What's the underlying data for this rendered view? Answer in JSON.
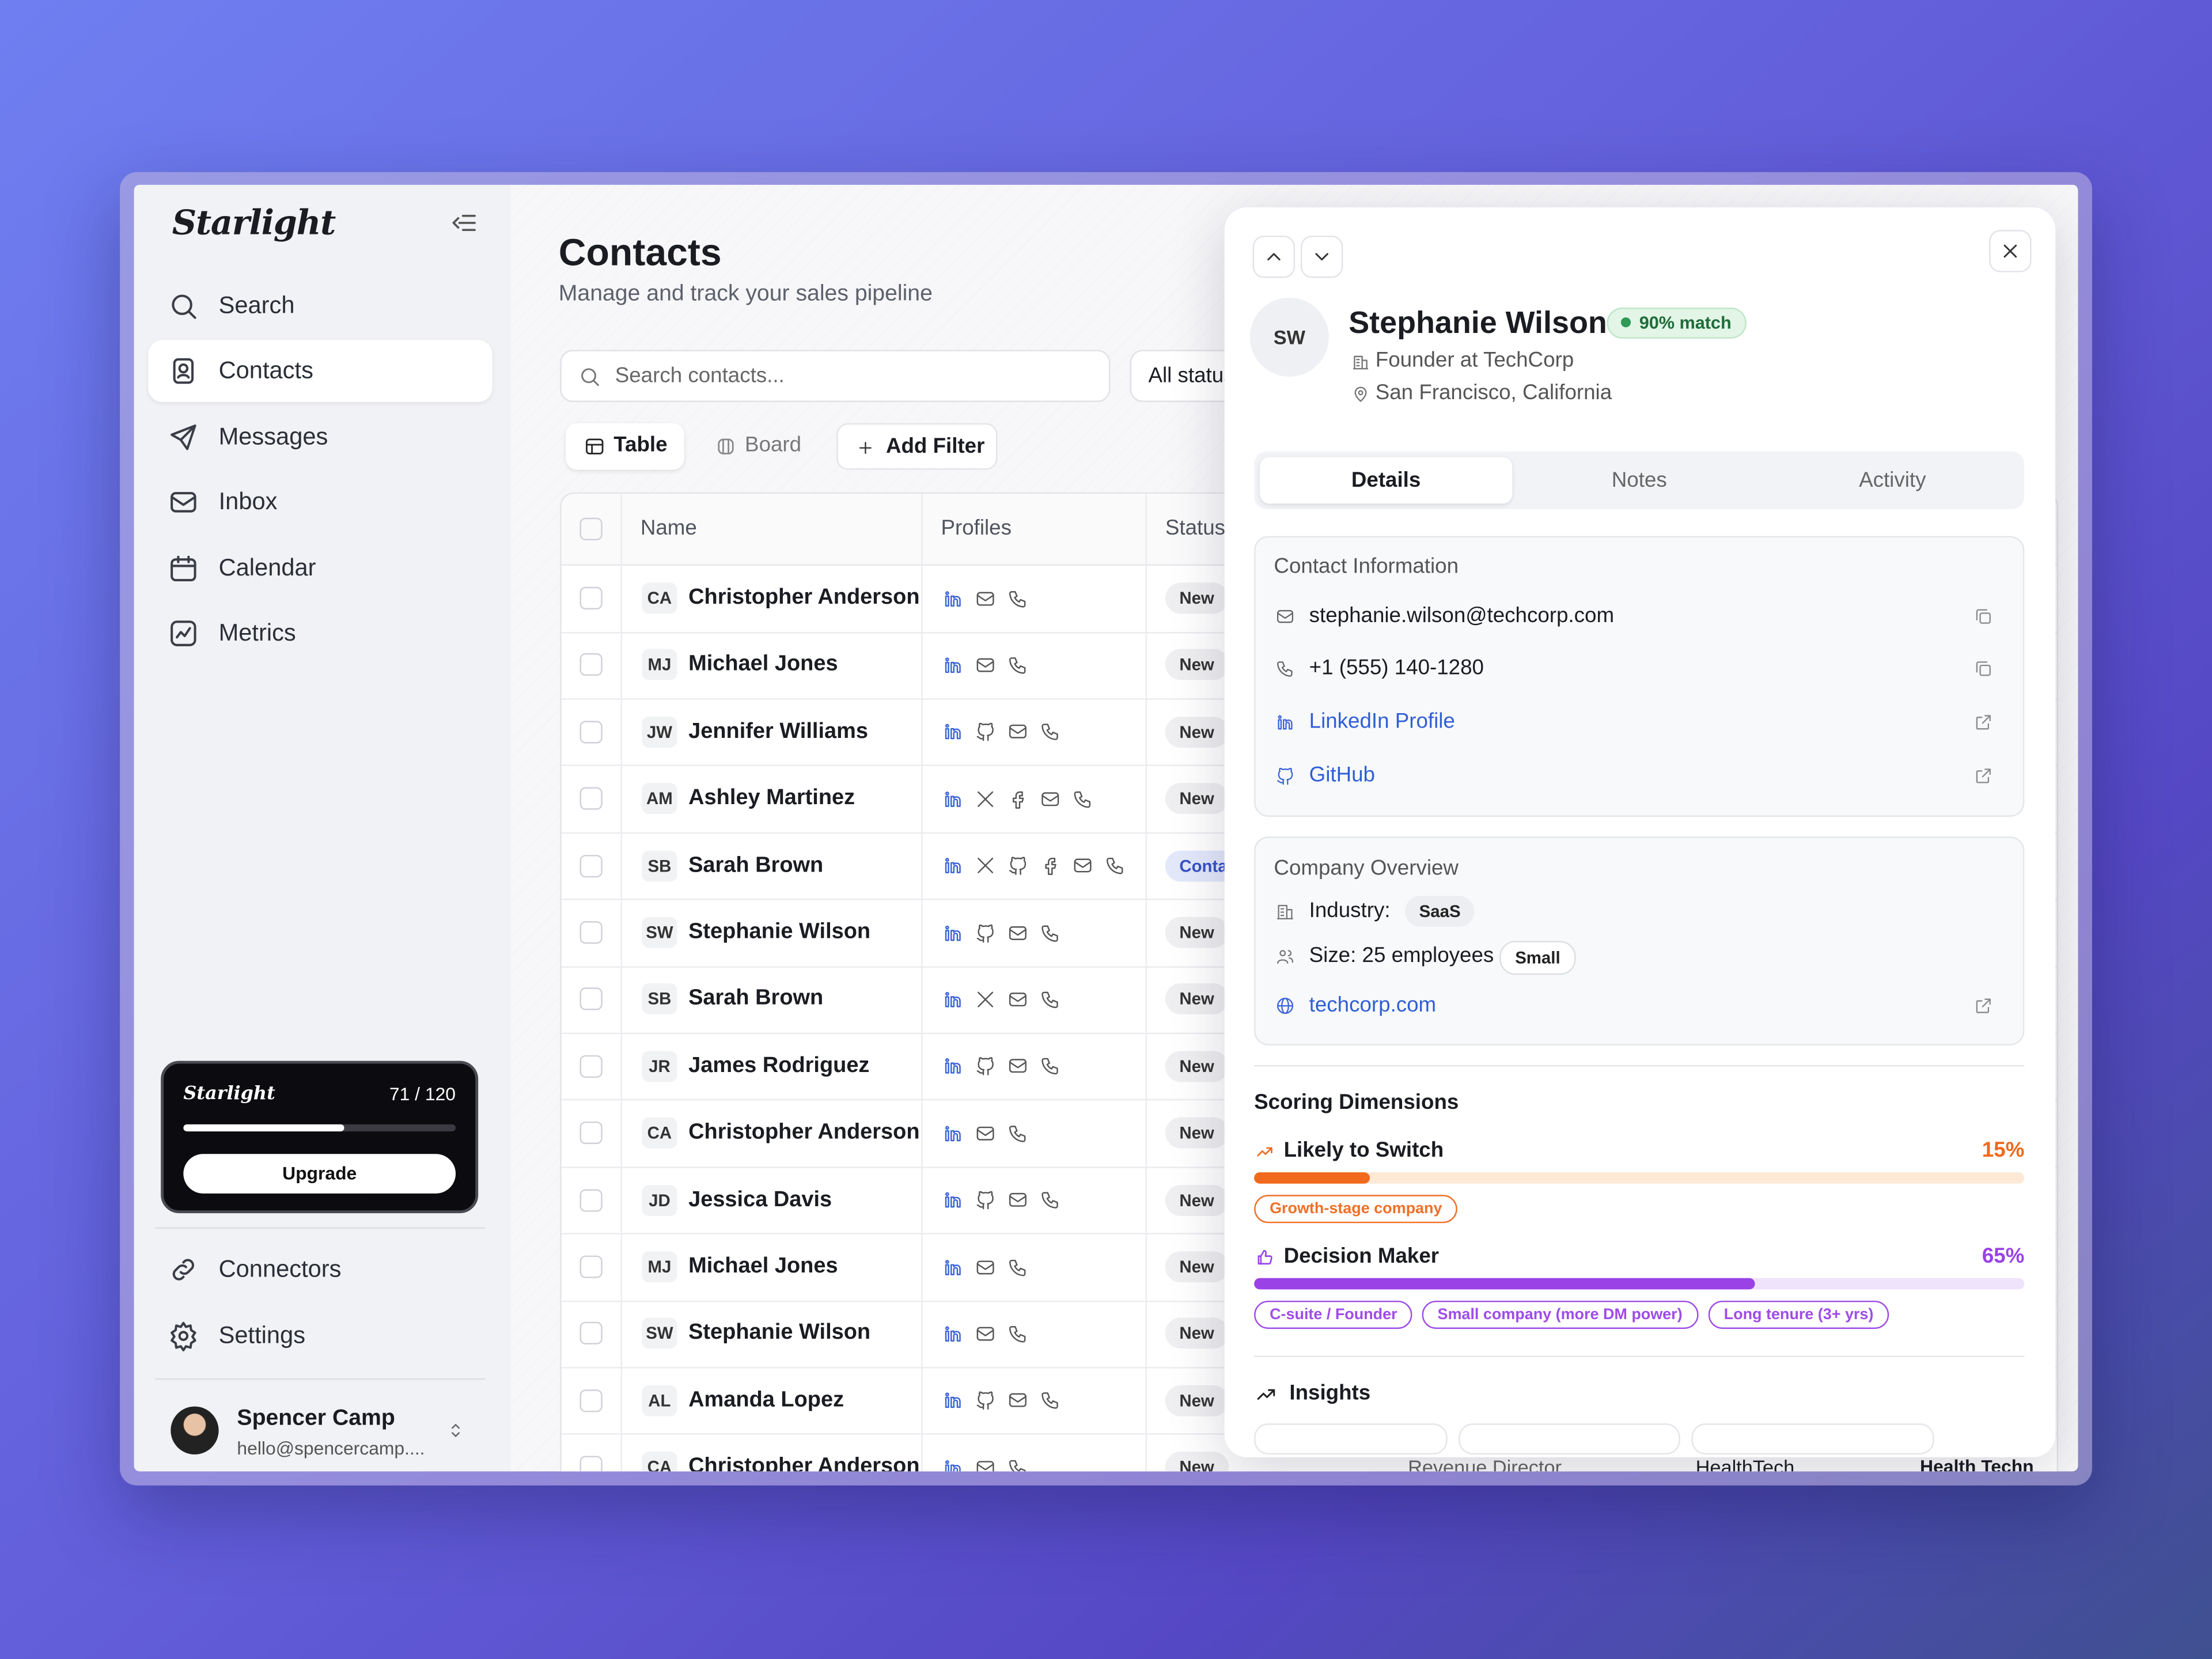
{
  "sidebar": {
    "logo": "Starlight",
    "nav": [
      "Search",
      "Contacts",
      "Messages",
      "Inbox",
      "Calendar",
      "Metrics"
    ],
    "active_index": 1,
    "usage": {
      "brand": "Starlight",
      "used": 71,
      "total": 120,
      "label": "71 / 120",
      "button": "Upgrade"
    },
    "bottom_nav": [
      "Connectors",
      "Settings"
    ],
    "user": {
      "name": "Spencer Camp",
      "email": "hello@spencercamp...."
    }
  },
  "header": {
    "title": "Contacts",
    "subtitle": "Manage and track your sales pipeline"
  },
  "toolbar": {
    "search_placeholder": "Search contacts...",
    "status_filter": "All statuses",
    "views": [
      "Table",
      "Board"
    ],
    "active_view": 0,
    "add_filter": "Add Filter"
  },
  "table": {
    "columns": [
      "Name",
      "Profiles",
      "Status"
    ],
    "rows": [
      {
        "initials": "CA",
        "name": "Christopher Anderson",
        "profiles": [
          "linkedin",
          "email",
          "phone"
        ],
        "status": "New"
      },
      {
        "initials": "MJ",
        "name": "Michael Jones",
        "profiles": [
          "linkedin",
          "email",
          "phone"
        ],
        "status": "New"
      },
      {
        "initials": "JW",
        "name": "Jennifer Williams",
        "profiles": [
          "linkedin",
          "github",
          "email",
          "phone"
        ],
        "status": "New"
      },
      {
        "initials": "AM",
        "name": "Ashley Martinez",
        "profiles": [
          "linkedin",
          "x",
          "facebook",
          "email",
          "phone"
        ],
        "status": "New"
      },
      {
        "initials": "SB",
        "name": "Sarah Brown",
        "profiles": [
          "linkedin",
          "x",
          "github",
          "facebook",
          "email",
          "phone"
        ],
        "status": "Contacted"
      },
      {
        "initials": "SW",
        "name": "Stephanie Wilson",
        "profiles": [
          "linkedin",
          "github",
          "email",
          "phone"
        ],
        "status": "New"
      },
      {
        "initials": "SB",
        "name": "Sarah Brown",
        "profiles": [
          "linkedin",
          "x",
          "email",
          "phone"
        ],
        "status": "New"
      },
      {
        "initials": "JR",
        "name": "James Rodriguez",
        "profiles": [
          "linkedin",
          "github",
          "email",
          "phone"
        ],
        "status": "New"
      },
      {
        "initials": "CA",
        "name": "Christopher Anderson",
        "profiles": [
          "linkedin",
          "email",
          "phone"
        ],
        "status": "New"
      },
      {
        "initials": "JD",
        "name": "Jessica Davis",
        "profiles": [
          "linkedin",
          "github",
          "email",
          "phone"
        ],
        "status": "New"
      },
      {
        "initials": "MJ",
        "name": "Michael Jones",
        "profiles": [
          "linkedin",
          "email",
          "phone"
        ],
        "status": "New"
      },
      {
        "initials": "SW",
        "name": "Stephanie Wilson",
        "profiles": [
          "linkedin",
          "email",
          "phone"
        ],
        "status": "New"
      },
      {
        "initials": "AL",
        "name": "Amanda Lopez",
        "profiles": [
          "linkedin",
          "github",
          "email",
          "phone"
        ],
        "status": "New"
      },
      {
        "initials": "CA",
        "name": "Christopher Anderson",
        "profiles": [
          "linkedin",
          "email",
          "phone"
        ],
        "status": "New",
        "title": "Revenue Director",
        "company": "HealthTech",
        "industry": "Health Technology"
      }
    ]
  },
  "panel": {
    "initials": "SW",
    "name": "Stephanie Wilson",
    "match": "90% match",
    "role": "Founder at TechCorp",
    "location": "San Francisco, California",
    "tabs": [
      "Details",
      "Notes",
      "Activity"
    ],
    "active_tab": 0,
    "contact": {
      "heading": "Contact Information",
      "email": "stephanie.wilson@techcorp.com",
      "phone": "+1 (555) 140-1280",
      "linkedin": "LinkedIn Profile",
      "github": "GitHub"
    },
    "company": {
      "heading": "Company Overview",
      "industry_label": "Industry:",
      "industry": "SaaS",
      "size_label": "Size: 25 employees",
      "size": "Small",
      "website": "techcorp.com"
    },
    "scoring": {
      "heading": "Scoring Dimensions",
      "items": [
        {
          "name": "Likely to Switch",
          "score": {
            "value": 15,
            "label": "15%"
          },
          "color": "#f0691c",
          "track": "#fde9d6",
          "tags": [
            "Growth-stage company"
          ]
        },
        {
          "name": "Decision Maker",
          "score": {
            "value": 65,
            "label": "65%"
          },
          "color": "#9a42e6",
          "track": "#efe3fb",
          "tags": [
            "C-suite / Founder",
            "Small company (more DM power)",
            "Long tenure (3+ yrs)"
          ]
        }
      ]
    },
    "insights": "Insights"
  }
}
